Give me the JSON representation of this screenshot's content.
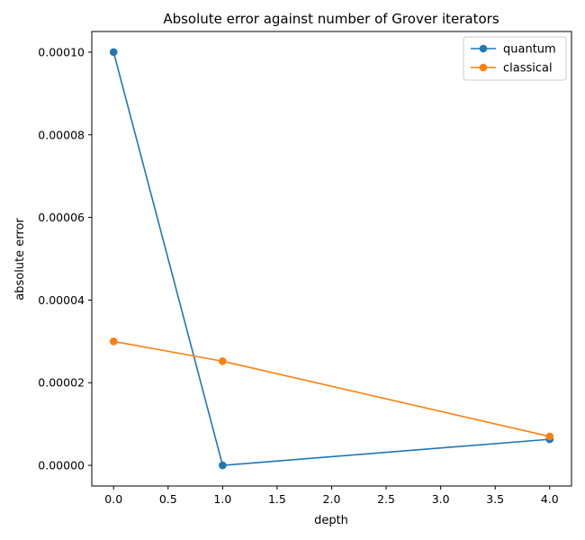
{
  "chart_data": {
    "type": "line",
    "title": "Absolute error against number of Grover iterators",
    "xlabel": "depth",
    "ylabel": "absolute error",
    "xlim": [
      -0.2,
      4.2
    ],
    "ylim": [
      -5e-06,
      0.000105
    ],
    "xticks": [
      0.0,
      0.5,
      1.0,
      1.5,
      2.0,
      2.5,
      3.0,
      3.5,
      4.0
    ],
    "xtick_labels": [
      "0.0",
      "0.5",
      "1.0",
      "1.5",
      "2.0",
      "2.5",
      "3.0",
      "3.5",
      "4.0"
    ],
    "yticks": [
      0.0,
      2e-05,
      4e-05,
      6e-05,
      8e-05,
      0.0001
    ],
    "ytick_labels": [
      "0.00000",
      "0.00002",
      "0.00004",
      "0.00006",
      "0.00008",
      "0.00010"
    ],
    "grid": false,
    "legend_position": "top-right",
    "series": [
      {
        "name": "quantum",
        "color": "#1f77b4",
        "x": [
          0,
          1,
          4
        ],
        "y": [
          0.0001,
          0.0,
          6.3e-06
        ]
      },
      {
        "name": "classical",
        "color": "#ff7f0e",
        "x": [
          0,
          1,
          4
        ],
        "y": [
          3e-05,
          2.52e-05,
          7e-06
        ]
      }
    ]
  }
}
